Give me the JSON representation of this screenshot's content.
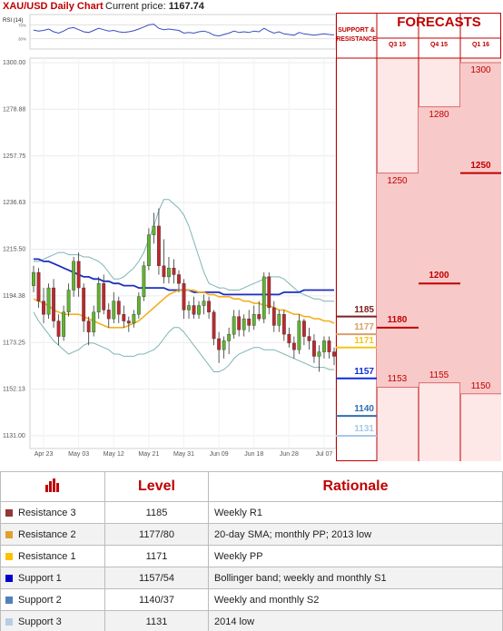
{
  "header": {
    "title": "XAU/USD Daily Chart",
    "price_label": "Current price:",
    "price_value": "1167.74"
  },
  "chart_data": {
    "type": "candlestick",
    "rsi_label": "RSI (14)",
    "rsi_ticks": [
      "70%",
      "30%"
    ],
    "y_ticks": [
      "1300.00",
      "1278.88",
      "1257.75",
      "1236.63",
      "1215.50",
      "1194.38",
      "1173.25",
      "1152.13",
      "1131.00"
    ],
    "x_ticks": [
      "Apr 23",
      "May 03",
      "May 12",
      "May 21",
      "May 31",
      "Jun 09",
      "Jun 18",
      "Jun 28",
      "Jul 07"
    ],
    "ylim": [
      1131.0,
      1300.0
    ],
    "candles": [
      [
        1199,
        1208,
        1196,
        1205
      ],
      [
        1205,
        1207,
        1189,
        1192
      ],
      [
        1192,
        1198,
        1182,
        1186
      ],
      [
        1186,
        1200,
        1184,
        1198
      ],
      [
        1198,
        1202,
        1180,
        1183
      ],
      [
        1183,
        1186,
        1172,
        1176
      ],
      [
        1176,
        1190,
        1174,
        1187
      ],
      [
        1187,
        1200,
        1185,
        1197
      ],
      [
        1197,
        1212,
        1194,
        1210
      ],
      [
        1210,
        1214,
        1194,
        1198
      ],
      [
        1198,
        1200,
        1178,
        1183
      ],
      [
        1183,
        1185,
        1172,
        1178
      ],
      [
        1178,
        1190,
        1176,
        1187
      ],
      [
        1187,
        1203,
        1184,
        1200
      ],
      [
        1200,
        1204,
        1186,
        1188
      ],
      [
        1188,
        1191,
        1180,
        1184
      ],
      [
        1184,
        1196,
        1182,
        1192
      ],
      [
        1192,
        1194,
        1182,
        1186
      ],
      [
        1186,
        1190,
        1180,
        1183
      ],
      [
        1183,
        1185,
        1178,
        1182
      ],
      [
        1182,
        1188,
        1180,
        1186
      ],
      [
        1186,
        1196,
        1184,
        1194
      ],
      [
        1194,
        1210,
        1192,
        1208
      ],
      [
        1208,
        1225,
        1206,
        1222
      ],
      [
        1222,
        1232,
        1218,
        1226
      ],
      [
        1226,
        1234,
        1204,
        1208
      ],
      [
        1208,
        1220,
        1200,
        1203
      ],
      [
        1203,
        1212,
        1200,
        1207
      ],
      [
        1207,
        1211,
        1200,
        1204
      ],
      [
        1204,
        1206,
        1196,
        1200
      ],
      [
        1200,
        1202,
        1184,
        1188
      ],
      [
        1188,
        1192,
        1184,
        1190
      ],
      [
        1190,
        1194,
        1184,
        1186
      ],
      [
        1186,
        1192,
        1184,
        1190
      ],
      [
        1190,
        1195,
        1186,
        1192
      ],
      [
        1192,
        1194,
        1184,
        1187
      ],
      [
        1187,
        1188,
        1172,
        1175
      ],
      [
        1175,
        1178,
        1164,
        1170
      ],
      [
        1170,
        1176,
        1166,
        1174
      ],
      [
        1174,
        1180,
        1168,
        1177
      ],
      [
        1177,
        1188,
        1175,
        1185
      ],
      [
        1185,
        1188,
        1176,
        1179
      ],
      [
        1179,
        1186,
        1176,
        1184
      ],
      [
        1184,
        1188,
        1178,
        1181
      ],
      [
        1181,
        1190,
        1179,
        1186
      ],
      [
        1186,
        1192,
        1183,
        1184
      ],
      [
        1184,
        1205,
        1182,
        1203
      ],
      [
        1203,
        1205,
        1186,
        1189
      ],
      [
        1189,
        1192,
        1178,
        1181
      ],
      [
        1181,
        1188,
        1178,
        1186
      ],
      [
        1186,
        1188,
        1174,
        1177
      ],
      [
        1177,
        1180,
        1171,
        1173
      ],
      [
        1173,
        1176,
        1166,
        1170
      ],
      [
        1170,
        1186,
        1168,
        1183
      ],
      [
        1183,
        1184,
        1172,
        1176
      ],
      [
        1176,
        1180,
        1170,
        1174
      ],
      [
        1174,
        1177,
        1164,
        1167
      ],
      [
        1167,
        1172,
        1160,
        1169
      ],
      [
        1169,
        1176,
        1166,
        1174
      ],
      [
        1174,
        1176,
        1166,
        1169
      ],
      [
        1169,
        1171,
        1163,
        1167
      ]
    ],
    "ma_blue": [
      1211,
      1211,
      1210,
      1210,
      1209,
      1208,
      1207,
      1206,
      1205,
      1204,
      1203,
      1203,
      1202,
      1202,
      1201,
      1201,
      1200,
      1200,
      1199,
      1199,
      1199,
      1198,
      1198,
      1198,
      1198,
      1198,
      1198,
      1197,
      1197,
      1197,
      1197,
      1197,
      1196,
      1196,
      1196,
      1196,
      1196,
      1196,
      1195,
      1195,
      1195,
      1195,
      1195,
      1195,
      1195,
      1195,
      1195,
      1195,
      1195,
      1195,
      1196,
      1196,
      1196,
      1196,
      1197,
      1197,
      1197,
      1197,
      1197,
      1197,
      1197
    ],
    "ma_orange": [
      1193,
      1192,
      1191,
      1190,
      1188,
      1187,
      1186,
      1186,
      1186,
      1186,
      1185,
      1184,
      1183,
      1182,
      1181,
      1180,
      1180,
      1180,
      1180,
      1181,
      1182,
      1183,
      1185,
      1187,
      1189,
      1191,
      1193,
      1195,
      1196,
      1197,
      1197,
      1197,
      1197,
      1196,
      1196,
      1195,
      1195,
      1194,
      1194,
      1194,
      1193,
      1193,
      1192,
      1192,
      1191,
      1191,
      1190,
      1190,
      1189,
      1188,
      1188,
      1187,
      1186,
      1186,
      1185,
      1185,
      1184,
      1184,
      1183,
      1183,
      1182
    ],
    "bb_upper": [
      1210,
      1210,
      1211,
      1212,
      1213,
      1214,
      1214,
      1213,
      1213,
      1213,
      1212,
      1212,
      1211,
      1210,
      1208,
      1205,
      1202,
      1202,
      1203,
      1205,
      1207,
      1210,
      1214,
      1220,
      1226,
      1233,
      1238,
      1238,
      1236,
      1234,
      1231,
      1226,
      1219,
      1212,
      1205,
      1200,
      1199,
      1198,
      1198,
      1197,
      1197,
      1197,
      1198,
      1199,
      1200,
      1201,
      1202,
      1203,
      1203,
      1203,
      1202,
      1200,
      1198,
      1196,
      1195,
      1194,
      1193,
      1193,
      1192,
      1192,
      1192
    ],
    "bb_lower": [
      1187,
      1183,
      1180,
      1177,
      1174,
      1172,
      1170,
      1168,
      1169,
      1170,
      1172,
      1173,
      1173,
      1172,
      1171,
      1170,
      1168,
      1168,
      1167,
      1167,
      1167,
      1168,
      1168,
      1169,
      1170,
      1172,
      1175,
      1178,
      1180,
      1180,
      1178,
      1175,
      1172,
      1169,
      1166,
      1163,
      1160,
      1160,
      1161,
      1163,
      1166,
      1168,
      1169,
      1170,
      1171,
      1171,
      1170,
      1170,
      1170,
      1169,
      1168,
      1167,
      1166,
      1165,
      1164,
      1163,
      1162,
      1162,
      1162,
      1161,
      1161
    ],
    "rsi": [
      55,
      52,
      54,
      58,
      50,
      46,
      52,
      60,
      62,
      56,
      50,
      48,
      54,
      60,
      56,
      52,
      54,
      50,
      48,
      50,
      53,
      58,
      64,
      70,
      72,
      60,
      56,
      58,
      56,
      54,
      46,
      48,
      46,
      50,
      52,
      48,
      40,
      38,
      42,
      46,
      52,
      48,
      50,
      48,
      52,
      50,
      60,
      52,
      46,
      50,
      44,
      42,
      40,
      48,
      44,
      42,
      40,
      42,
      44,
      42,
      41
    ],
    "sr_levels": [
      {
        "label": "1185",
        "value": 1185,
        "color": "#7b2020"
      },
      {
        "label": "1177",
        "value": 1177,
        "color": "#d9a066"
      },
      {
        "label": "1171",
        "value": 1171,
        "color": "#f5c518"
      },
      {
        "label": "1157",
        "value": 1157,
        "color": "#0b2fd9"
      },
      {
        "label": "1140",
        "value": 1140,
        "color": "#2f6fb0"
      },
      {
        "label": "1131",
        "value": 1131,
        "color": "#a8c9e6"
      }
    ],
    "forecast_title": "FORECASTS",
    "sr_title": "SUPPORT & RESISTANCE",
    "quarters": [
      {
        "label": "Q3 15",
        "high": 1250,
        "mid": 1180,
        "low": 1153,
        "high_label": "1250",
        "mid_label": "1180",
        "low_label": "1153"
      },
      {
        "label": "Q4 15",
        "high": 1280,
        "mid": 1200,
        "low": 1155,
        "high_label": "1280",
        "mid_label": "1200",
        "low_label": "1155"
      },
      {
        "label": "Q1 16",
        "high": 1300,
        "mid": 1250,
        "low": 1150,
        "high_label": "1300",
        "mid_label": "1250",
        "low_label": "1150"
      }
    ]
  },
  "table": {
    "col_level": "Level",
    "col_rationale": "Rationale",
    "rows": [
      {
        "name": "Resistance 3",
        "level": "1185",
        "rationale": "Weekly R1",
        "color": "#953735"
      },
      {
        "name": "Resistance 2",
        "level": "1177/80",
        "rationale": "20-day SMA; monthly PP; 2013 low",
        "color": "#e0a030"
      },
      {
        "name": "Resistance 1",
        "level": "1171",
        "rationale": "Weekly PP",
        "color": "#ffc000"
      },
      {
        "name": "Support 1",
        "level": "1157/54",
        "rationale": "Bollinger band; weekly and monthly S1",
        "color": "#0000cc"
      },
      {
        "name": "Support 2",
        "level": "1140/37",
        "rationale": "Weekly and monthly S2",
        "color": "#4f81bd"
      },
      {
        "name": "Support 3",
        "level": "1131",
        "rationale": "2014 low",
        "color": "#b8cce4"
      }
    ]
  }
}
